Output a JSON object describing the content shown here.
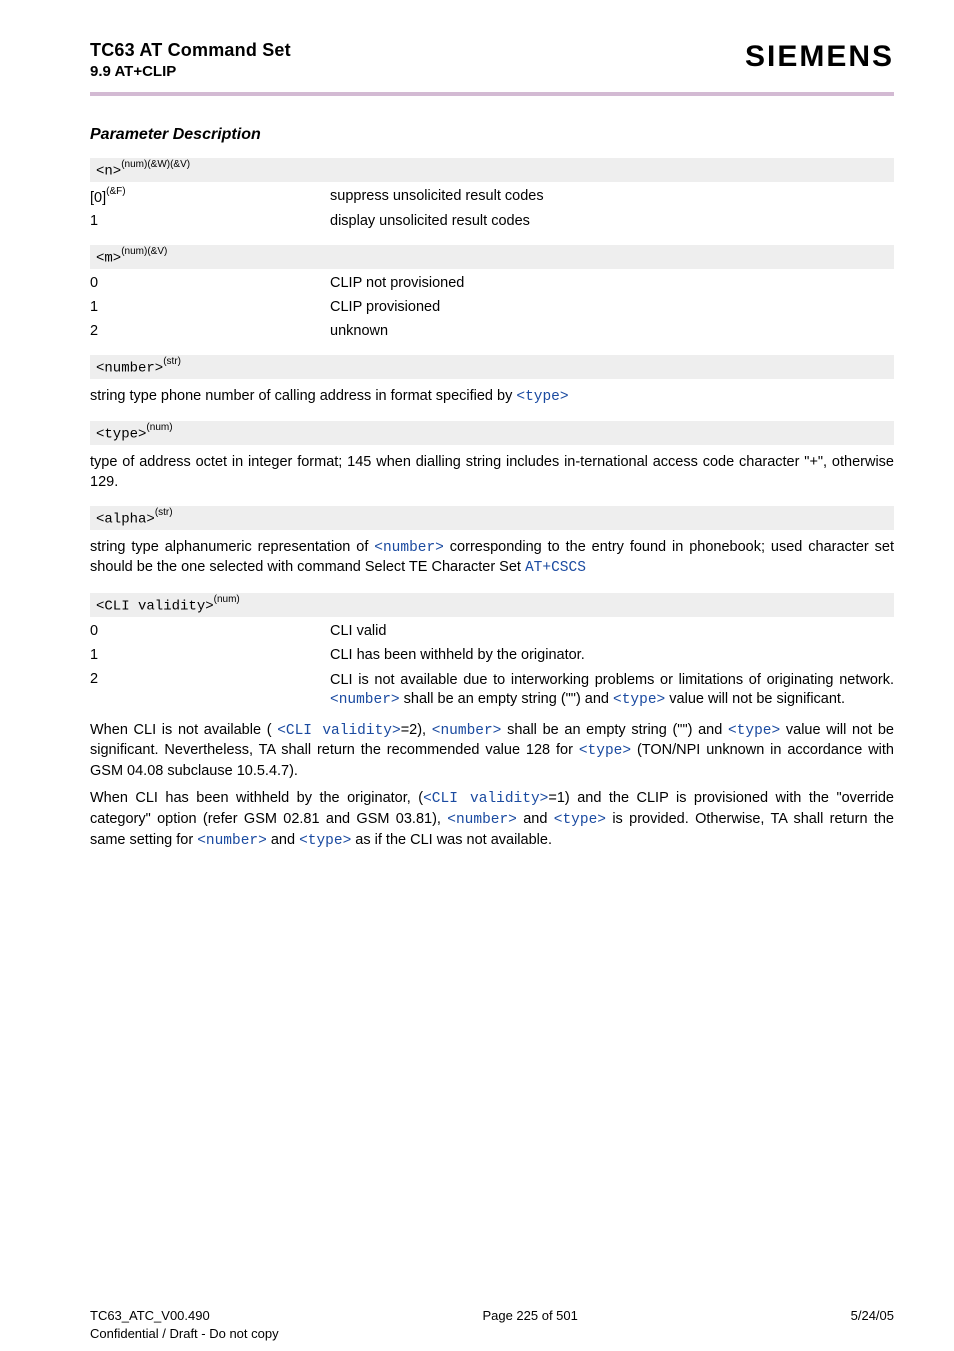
{
  "header": {
    "doc_title": "TC63 AT Command Set",
    "doc_sub": "9.9 AT+CLIP",
    "brand": "SIEMENS"
  },
  "colors": {
    "rule": "#d3bad3",
    "param_bg": "#eeeeee",
    "link": "#1a4aa0",
    "text": "#000000",
    "page_bg": "#ffffff"
  },
  "content": {
    "section_title": "Parameter Description",
    "param_n": {
      "head_text": "<n>",
      "head_sup": "(num)(&W)(&V)",
      "rows": [
        {
          "key": "[0]",
          "key_sup": "(&F)",
          "val": "suppress unsolicited result codes"
        },
        {
          "key": "1",
          "key_sup": "",
          "val": "display unsolicited result codes"
        }
      ]
    },
    "param_m": {
      "head_text": "<m>",
      "head_sup": "(num)(&V)",
      "rows": [
        {
          "key": "0",
          "key_sup": "",
          "val": "CLIP not provisioned"
        },
        {
          "key": "1",
          "key_sup": "",
          "val": "CLIP provisioned"
        },
        {
          "key": "2",
          "key_sup": "",
          "val": "unknown"
        }
      ]
    },
    "param_number": {
      "head_text": "<number>",
      "head_sup": "(str)",
      "desc_pre": "string type phone number of calling address in format specified by ",
      "desc_link": "<type>"
    },
    "param_type": {
      "head_text": "<type>",
      "head_sup": "(num)",
      "desc": "type of address octet in integer format; 145 when dialling string includes in-ternational access code character \"+\", otherwise 129."
    },
    "param_alpha": {
      "head_text": "<alpha>",
      "head_sup": "(str)",
      "desc_pre": "string type alphanumeric representation of ",
      "desc_link1": "<number>",
      "desc_mid": " corresponding to the entry found in phonebook; used character set should be the one selected with command Select TE Character Set ",
      "desc_link2": "AT+CSCS"
    },
    "param_cli": {
      "head_text": "<CLI validity>",
      "head_sup": "(num)",
      "rows": [
        {
          "key": "0",
          "val": "CLI valid"
        },
        {
          "key": "1",
          "val": "CLI has been withheld by the originator."
        }
      ],
      "row2": {
        "key": "2",
        "val_a": "CLI is not available due to interworking problems or limitations of originating network. ",
        "val_link1": "<number>",
        "val_b": " shall be an empty string (\"\") and ",
        "val_link2": "<type>",
        "val_c": " value will not be significant."
      }
    },
    "trail1": {
      "a": "When CLI is not available ( ",
      "l1": "<CLI validity>",
      "b": "=2), ",
      "l2": "<number>",
      "c": " shall be an empty string (\"\") and ",
      "l3": "<type>",
      "d": " value will not be significant. Nevertheless, TA shall return the recommended value 128 for ",
      "l4": "<type>",
      "e": " (TON/NPI unknown in accordance with GSM 04.08 subclause 10.5.4.7)."
    },
    "trail2": {
      "a": "When CLI has been withheld by the originator, (",
      "l1": "<CLI validity>",
      "b": "=1) and the CLIP is provisioned with the \"override category\" option (refer GSM 02.81 and GSM 03.81), ",
      "l2": "<number>",
      "c": " and ",
      "l3": "<type>",
      "d": " is provided. Otherwise, TA shall return the same setting for ",
      "l4": "<number>",
      "e": " and ",
      "l5": "<type>",
      "f": " as if the CLI was not available."
    }
  },
  "footer": {
    "left": "TC63_ATC_V00.490",
    "center": "Page 225 of 501",
    "right": "5/24/05",
    "conf": "Confidential / Draft - Do not copy"
  }
}
